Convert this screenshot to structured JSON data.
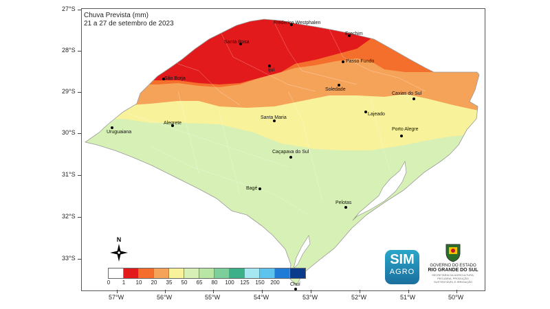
{
  "title_line1": "Chuva Prevista (mm)",
  "title_line2": "21 a 27 de setembro de 2023",
  "y_ticks": [
    "27°S",
    "28°S",
    "29°S",
    "30°S",
    "31°S",
    "32°S",
    "33°S"
  ],
  "x_ticks": [
    "57°W",
    "56°W",
    "55°W",
    "54°W",
    "53°W",
    "52°W",
    "51°W",
    "50°W"
  ],
  "cities": [
    {
      "name": "Frederico Westphalen",
      "key": "fw"
    },
    {
      "name": "Erechim",
      "key": "er"
    },
    {
      "name": "Santa Rosa",
      "key": "sr"
    },
    {
      "name": "Ijuí",
      "key": "ij"
    },
    {
      "name": "Passo Fundo",
      "key": "pf"
    },
    {
      "name": "São Borja",
      "key": "sb"
    },
    {
      "name": "Soledade",
      "key": "so"
    },
    {
      "name": "Caxias do Sul",
      "key": "cs"
    },
    {
      "name": "Lajeado",
      "key": "la"
    },
    {
      "name": "Santa Maria",
      "key": "sm"
    },
    {
      "name": "Alegrete",
      "key": "al"
    },
    {
      "name": "Uruguaiana",
      "key": "ur"
    },
    {
      "name": "Porto Alegre",
      "key": "pa"
    },
    {
      "name": "Caçapava do Sul",
      "key": "cp"
    },
    {
      "name": "Bagé",
      "key": "bg"
    },
    {
      "name": "Pelotas",
      "key": "pe"
    },
    {
      "name": "Chuí",
      "key": "ch"
    }
  ],
  "legend": {
    "bins": [
      0,
      1,
      10,
      20,
      35,
      50,
      65,
      80,
      100,
      125,
      150,
      200
    ],
    "labels": [
      "0",
      "1",
      "10",
      "20",
      "35",
      "50",
      "65",
      "80",
      "100",
      "125",
      "150",
      "200"
    ],
    "colors": [
      "#ffffff",
      "#e31a1c",
      "#f46d2a",
      "#f6a35a",
      "#f8f29a",
      "#d7f0b5",
      "#b9e6a5",
      "#7ccf9a",
      "#3bb089",
      "#a7e7f2",
      "#5ec4ee",
      "#1f7bd6",
      "#0a3a8a"
    ]
  },
  "compass_letter": "N",
  "logo": {
    "line1": "SIM",
    "line2": "AGRO"
  },
  "gov": {
    "line1": "GOVERNO DO ESTADO",
    "line2": "RIO GRANDE DO SUL",
    "line3": "SECRETARIA DA AGRICULTURA, PECUÁRIA, PRODUÇÃO SUSTENTÁVEL E IRRIGAÇÃO"
  },
  "precip_zones": [
    {
      "zone": "northwest",
      "range_mm": "1-10",
      "color": "#e31a1c"
    },
    {
      "zone": "north-central",
      "range_mm": "10-20",
      "color": "#f46d2a"
    },
    {
      "zone": "northeast / serra",
      "range_mm": "20-35",
      "color": "#f6a35a"
    },
    {
      "zone": "central belt",
      "range_mm": "35-50",
      "color": "#f8f29a"
    },
    {
      "zone": "south / campanha",
      "range_mm": "50-65",
      "color": "#d7f0b5"
    }
  ]
}
